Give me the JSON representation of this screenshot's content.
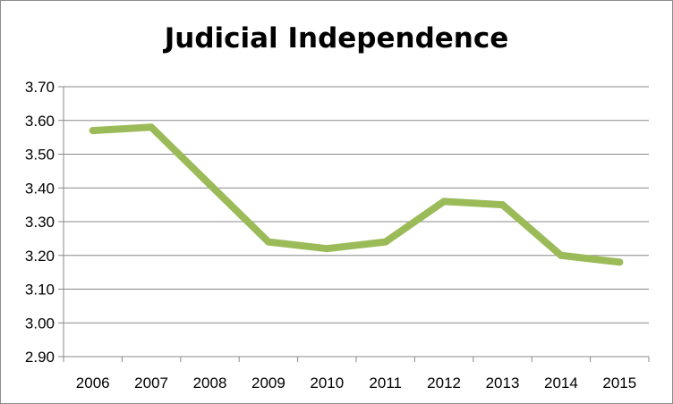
{
  "chart_data": {
    "type": "line",
    "title": "Judicial Independence",
    "xlabel": "",
    "ylabel": "",
    "categories": [
      "2006",
      "2007",
      "2008",
      "2009",
      "2010",
      "2011",
      "2012",
      "2013",
      "2014",
      "2015"
    ],
    "series": [
      {
        "values": [
          3.57,
          3.58,
          3.41,
          3.24,
          3.22,
          3.24,
          3.36,
          3.35,
          3.2,
          3.18
        ]
      }
    ],
    "ylim": [
      2.9,
      3.7
    ],
    "yticks": [
      "2.90",
      "3.00",
      "3.10",
      "3.20",
      "3.30",
      "3.40",
      "3.50",
      "3.60",
      "3.70"
    ],
    "grid": true,
    "legend": "none",
    "colors": {
      "line": "#9bbb59",
      "grid": "#888888",
      "axis": "#888888"
    }
  }
}
